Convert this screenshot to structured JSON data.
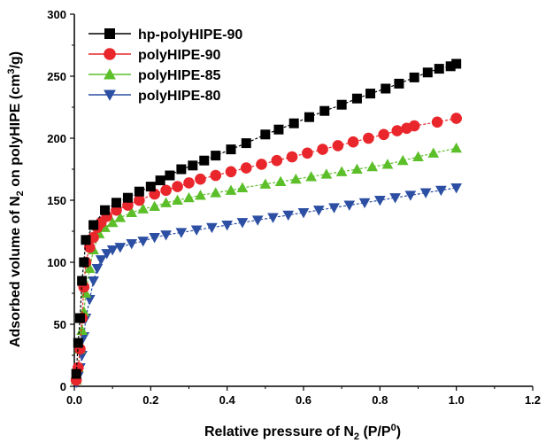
{
  "chart_data": {
    "type": "scatter",
    "xlabel": {
      "main": "Relative pressure of N",
      "sub": "2",
      "tail1": " (P/P",
      "sup": "0",
      "tail2": ")"
    },
    "ylabel": {
      "p1": "Adsorbed volume of N",
      "sub": "2",
      "p2": " on polyHIPE (cm",
      "sup": "3",
      "p3": "/g)"
    },
    "xlim": [
      0,
      1.2
    ],
    "ylim": [
      0,
      300
    ],
    "xticks": [
      "0.0",
      "0.2",
      "0.4",
      "0.6",
      "0.8",
      "1.0",
      "1.2"
    ],
    "yticks": [
      "0",
      "50",
      "100",
      "150",
      "200",
      "250",
      "300"
    ],
    "grid": false,
    "legend_position": "top-left",
    "series": [
      {
        "name": "hp-polyHIPE-90",
        "color": "#000000",
        "marker": "square",
        "x": [
          0.005,
          0.01,
          0.015,
          0.02,
          0.025,
          0.03,
          0.05,
          0.08,
          0.11,
          0.14,
          0.17,
          0.2,
          0.225,
          0.25,
          0.28,
          0.31,
          0.34,
          0.37,
          0.41,
          0.45,
          0.5,
          0.535,
          0.575,
          0.615,
          0.655,
          0.7,
          0.74,
          0.775,
          0.815,
          0.85,
          0.89,
          0.925,
          0.955,
          0.985,
          1.0
        ],
        "y": [
          10,
          35,
          55,
          85,
          100,
          118,
          130,
          142,
          148,
          152,
          157,
          161,
          166,
          170,
          175,
          178,
          182,
          186,
          191,
          196,
          203,
          207,
          212,
          217,
          222,
          227,
          232,
          236,
          240,
          244,
          249,
          253,
          256,
          258,
          260
        ]
      },
      {
        "name": "polyHIPE-90",
        "color": "#e8262b",
        "marker": "circle",
        "x": [
          0.005,
          0.01,
          0.015,
          0.02,
          0.025,
          0.03,
          0.04,
          0.05,
          0.06,
          0.07,
          0.085,
          0.11,
          0.14,
          0.17,
          0.21,
          0.24,
          0.27,
          0.3,
          0.33,
          0.37,
          0.41,
          0.45,
          0.49,
          0.53,
          0.57,
          0.61,
          0.65,
          0.69,
          0.73,
          0.77,
          0.81,
          0.845,
          0.87,
          0.89,
          0.95,
          1.0
        ],
        "y": [
          5,
          15,
          30,
          55,
          80,
          100,
          112,
          120,
          128,
          132,
          137,
          142,
          146,
          150,
          155,
          158,
          161,
          164,
          167,
          170,
          173,
          176,
          179,
          182,
          185,
          188,
          191,
          194,
          197,
          200,
          203,
          206,
          208,
          210,
          213,
          216
        ]
      },
      {
        "name": "polyHIPE-85",
        "color": "#5cbf2a",
        "marker": "triangle-up",
        "x": [
          0.005,
          0.01,
          0.015,
          0.02,
          0.025,
          0.03,
          0.04,
          0.05,
          0.065,
          0.08,
          0.1,
          0.12,
          0.15,
          0.18,
          0.21,
          0.24,
          0.27,
          0.3,
          0.33,
          0.37,
          0.41,
          0.44,
          0.5,
          0.54,
          0.58,
          0.62,
          0.66,
          0.7,
          0.74,
          0.78,
          0.82,
          0.86,
          0.9,
          0.94,
          1.0
        ],
        "y": [
          5,
          15,
          30,
          45,
          60,
          75,
          95,
          110,
          123,
          128,
          132,
          136,
          140,
          143,
          145,
          148,
          150,
          152,
          154,
          156,
          158,
          160,
          163,
          165,
          167,
          169,
          171,
          173,
          175,
          177,
          179,
          182,
          185,
          188,
          192
        ]
      },
      {
        "name": "polyHIPE-80",
        "color": "#2c4fa3",
        "marker": "triangle-down",
        "x": [
          0.005,
          0.01,
          0.015,
          0.02,
          0.025,
          0.03,
          0.04,
          0.05,
          0.06,
          0.07,
          0.085,
          0.1,
          0.12,
          0.15,
          0.18,
          0.21,
          0.24,
          0.28,
          0.32,
          0.36,
          0.4,
          0.44,
          0.48,
          0.52,
          0.56,
          0.6,
          0.64,
          0.68,
          0.72,
          0.76,
          0.8,
          0.84,
          0.88,
          0.92,
          0.96,
          1.0
        ],
        "y": [
          3,
          8,
          15,
          25,
          40,
          55,
          70,
          85,
          95,
          102,
          107,
          110,
          112,
          115,
          117,
          120,
          122,
          124,
          126,
          128,
          130,
          132,
          134,
          136,
          138,
          140,
          142,
          144,
          146,
          148,
          150,
          152,
          154,
          156,
          158,
          160
        ]
      }
    ]
  }
}
